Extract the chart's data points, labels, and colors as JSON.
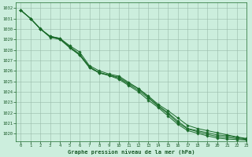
{
  "title": "Graphe pression niveau de la mer (hPa)",
  "background_color": "#cceedd",
  "grid_color": "#99bbaa",
  "line_color": "#1a6b2a",
  "text_color": "#1a5a28",
  "xlim": [
    -0.5,
    23
  ],
  "ylim": [
    1019.3,
    1032.5
  ],
  "yticks": [
    1020,
    1021,
    1022,
    1023,
    1024,
    1025,
    1026,
    1027,
    1028,
    1029,
    1030,
    1031,
    1032
  ],
  "xticks": [
    0,
    1,
    2,
    3,
    4,
    5,
    6,
    7,
    8,
    9,
    10,
    11,
    12,
    13,
    14,
    15,
    16,
    17,
    18,
    19,
    20,
    21,
    22,
    23
  ],
  "lines": [
    {
      "x": [
        0,
        1,
        2,
        3,
        4,
        5,
        6,
        7,
        8,
        9,
        10,
        11,
        12,
        13,
        14,
        15,
        16,
        17,
        18,
        19,
        20,
        21,
        22,
        23
      ],
      "y": [
        1031.8,
        1031.0,
        1030.0,
        1029.2,
        1029.0,
        1028.2,
        1027.5,
        1026.3,
        1025.8,
        1025.6,
        1025.4,
        1024.8,
        1024.3,
        1023.6,
        1022.8,
        1022.2,
        1021.5,
        1020.8,
        1020.5,
        1020.3,
        1020.1,
        1019.9,
        1019.7,
        1019.55
      ]
    },
    {
      "x": [
        0,
        1,
        2,
        3,
        4,
        5,
        6,
        7,
        8,
        9,
        10,
        11,
        12,
        13,
        14,
        15,
        16,
        17,
        18,
        19,
        20,
        21,
        22,
        23
      ],
      "y": [
        1031.8,
        1031.0,
        1030.0,
        1029.3,
        1029.1,
        1028.4,
        1027.8,
        1026.5,
        1026.0,
        1025.7,
        1025.5,
        1024.9,
        1024.3,
        1023.5,
        1022.7,
        1022.0,
        1021.2,
        1020.5,
        1020.3,
        1020.1,
        1019.9,
        1019.8,
        1019.65,
        1019.5
      ]
    },
    {
      "x": [
        0,
        1,
        2,
        3,
        4,
        5,
        6,
        7,
        8,
        9,
        10,
        11,
        12,
        13,
        14,
        15,
        16,
        17,
        18,
        19,
        20,
        21,
        22,
        23
      ],
      "y": [
        1031.8,
        1031.0,
        1030.0,
        1029.3,
        1029.1,
        1028.3,
        1027.6,
        1026.4,
        1025.8,
        1025.55,
        1025.2,
        1024.6,
        1024.0,
        1023.2,
        1022.5,
        1021.7,
        1020.9,
        1020.3,
        1020.05,
        1019.8,
        1019.6,
        1019.5,
        1019.45,
        1019.4
      ]
    },
    {
      "x": [
        0,
        1,
        2,
        3,
        4,
        5,
        6,
        7,
        8,
        9,
        10,
        11,
        12,
        13,
        14,
        15,
        16,
        17,
        18,
        19,
        20,
        21,
        22,
        23
      ],
      "y": [
        1031.8,
        1031.0,
        1030.05,
        1029.25,
        1029.05,
        1028.25,
        1027.55,
        1026.35,
        1025.85,
        1025.6,
        1025.3,
        1024.7,
        1024.15,
        1023.4,
        1022.6,
        1021.9,
        1021.05,
        1020.45,
        1020.2,
        1019.95,
        1019.75,
        1019.65,
        1019.55,
        1019.45
      ]
    }
  ]
}
